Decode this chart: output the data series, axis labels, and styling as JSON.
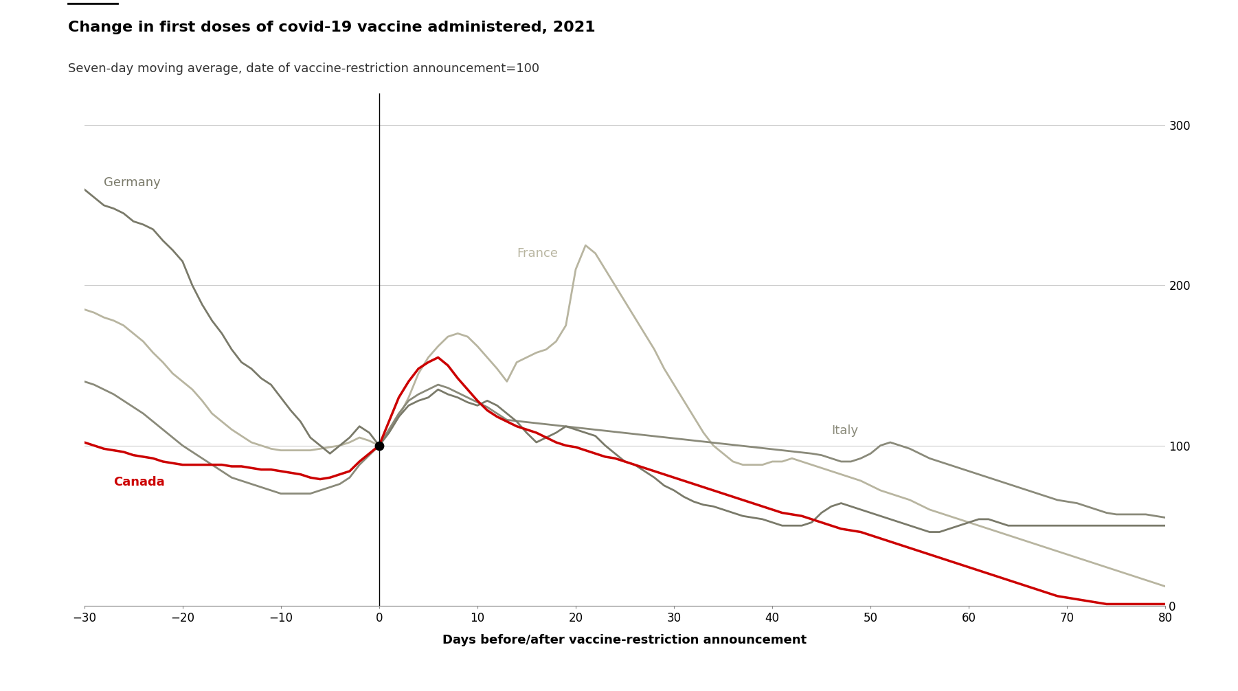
{
  "title": "Change in first doses of covid-19 vaccine administered, 2021",
  "subtitle": "Seven-day moving average, date of vaccine-restriction announcement=100",
  "xlabel": "Days before/after vaccine-restriction announcement",
  "xlim": [
    -30,
    80
  ],
  "ylim": [
    0,
    320
  ],
  "yticks": [
    0,
    100,
    200,
    300
  ],
  "xticks": [
    -30,
    -20,
    -10,
    0,
    10,
    20,
    30,
    40,
    50,
    60,
    70,
    80
  ],
  "bg_color": "#ffffff",
  "grid_color": "#cccccc",
  "canada_color": "#cc0000",
  "germany_color": "#7a7a6a",
  "france_color": "#b8b5a0",
  "italy_color": "#8a8a7a",
  "germany_x": [
    -30,
    -29,
    -28,
    -27,
    -26,
    -25,
    -24,
    -23,
    -22,
    -21,
    -20,
    -19,
    -18,
    -17,
    -16,
    -15,
    -14,
    -13,
    -12,
    -11,
    -10,
    -9,
    -8,
    -7,
    -6,
    -5,
    -4,
    -3,
    -2,
    -1,
    0,
    1,
    2,
    3,
    4,
    5,
    6,
    7,
    8,
    9,
    10,
    11,
    12,
    13,
    14,
    15,
    16,
    17,
    18,
    19,
    20,
    21,
    22,
    23,
    24,
    25,
    26,
    27,
    28,
    29,
    30,
    31,
    32,
    33,
    34,
    35,
    36,
    37,
    38,
    39,
    40,
    41,
    42,
    43,
    44,
    45,
    46,
    47,
    48,
    49,
    50,
    51,
    52,
    53,
    54,
    55,
    56,
    57,
    58,
    59,
    60,
    61,
    62,
    63,
    64,
    65,
    66,
    67,
    68,
    69,
    70,
    71,
    72,
    73,
    74,
    75,
    76,
    77,
    78,
    79,
    80
  ],
  "germany_y": [
    260,
    255,
    250,
    248,
    245,
    240,
    238,
    235,
    228,
    222,
    215,
    200,
    188,
    178,
    170,
    160,
    152,
    148,
    142,
    138,
    130,
    122,
    115,
    105,
    100,
    95,
    100,
    105,
    112,
    108,
    100,
    108,
    118,
    125,
    128,
    130,
    135,
    132,
    130,
    127,
    125,
    128,
    125,
    120,
    115,
    108,
    102,
    105,
    108,
    112,
    110,
    108,
    106,
    100,
    95,
    90,
    88,
    84,
    80,
    75,
    72,
    68,
    65,
    63,
    62,
    60,
    58,
    56,
    55,
    54,
    52,
    50,
    50,
    50,
    52,
    58,
    62,
    64,
    62,
    60,
    58,
    56,
    54,
    52,
    50,
    48,
    46,
    46,
    48,
    50,
    52,
    54,
    54,
    52,
    50,
    50,
    50,
    50,
    50,
    50,
    50,
    50,
    50,
    50,
    50,
    50,
    50,
    50,
    50,
    50,
    50
  ],
  "france_x": [
    -30,
    -29,
    -28,
    -27,
    -26,
    -25,
    -24,
    -23,
    -22,
    -21,
    -20,
    -19,
    -18,
    -17,
    -16,
    -15,
    -14,
    -13,
    -12,
    -11,
    -10,
    -9,
    -8,
    -7,
    -6,
    -5,
    -4,
    -3,
    -2,
    -1,
    0,
    1,
    2,
    3,
    4,
    5,
    6,
    7,
    8,
    9,
    10,
    11,
    12,
    13,
    14,
    15,
    16,
    17,
    18,
    19,
    20,
    21,
    22,
    23,
    24,
    25,
    26,
    27,
    28,
    29,
    30,
    31,
    32,
    33,
    34,
    35,
    36,
    37,
    38,
    39,
    40,
    41,
    42,
    43,
    44,
    45,
    46,
    47,
    48,
    49,
    50,
    51,
    52,
    53,
    54,
    55,
    56,
    57,
    58,
    59,
    60,
    61,
    62,
    63,
    64,
    65,
    66,
    67,
    68,
    69,
    70,
    71,
    72,
    73,
    74,
    75,
    76,
    77,
    78,
    79,
    80
  ],
  "france_y": [
    185,
    183,
    180,
    178,
    175,
    170,
    165,
    158,
    152,
    145,
    140,
    135,
    128,
    120,
    115,
    110,
    106,
    102,
    100,
    98,
    97,
    97,
    97,
    97,
    98,
    99,
    100,
    102,
    105,
    103,
    100,
    108,
    118,
    130,
    145,
    155,
    162,
    168,
    170,
    168,
    162,
    155,
    148,
    140,
    152,
    155,
    158,
    160,
    165,
    175,
    210,
    225,
    220,
    210,
    200,
    190,
    180,
    170,
    160,
    148,
    138,
    128,
    118,
    108,
    100,
    95,
    90,
    88,
    88,
    88,
    90,
    90,
    92,
    90,
    88,
    86,
    84,
    82,
    80,
    78,
    75,
    72,
    70,
    68,
    66,
    63,
    60,
    58,
    56,
    54,
    52,
    50,
    48,
    46,
    44,
    42,
    40,
    38,
    36,
    34,
    32,
    30,
    28,
    26,
    24,
    22,
    20,
    18,
    16,
    14,
    12
  ],
  "italy_x": [
    -30,
    -29,
    -28,
    -27,
    -26,
    -25,
    -24,
    -23,
    -22,
    -21,
    -20,
    -19,
    -18,
    -17,
    -16,
    -15,
    -14,
    -13,
    -12,
    -11,
    -10,
    -9,
    -8,
    -7,
    -6,
    -5,
    -4,
    -3,
    -2,
    -1,
    0,
    1,
    2,
    3,
    4,
    5,
    6,
    7,
    8,
    9,
    10,
    11,
    12,
    13,
    44,
    45,
    46,
    47,
    48,
    49,
    50,
    51,
    52,
    53,
    54,
    55,
    56,
    57,
    58,
    59,
    60,
    61,
    62,
    63,
    64,
    65,
    66,
    67,
    68,
    69,
    70,
    71,
    72,
    73,
    74,
    75,
    76,
    77,
    78,
    79,
    80
  ],
  "italy_y": [
    140,
    138,
    135,
    132,
    128,
    124,
    120,
    115,
    110,
    105,
    100,
    96,
    92,
    88,
    84,
    80,
    78,
    76,
    74,
    72,
    70,
    70,
    70,
    70,
    72,
    74,
    76,
    80,
    88,
    94,
    100,
    110,
    120,
    128,
    132,
    135,
    138,
    136,
    133,
    130,
    127,
    124,
    120,
    116,
    95,
    94,
    92,
    90,
    90,
    92,
    95,
    100,
    102,
    100,
    98,
    95,
    92,
    90,
    88,
    86,
    84,
    82,
    80,
    78,
    76,
    74,
    72,
    70,
    68,
    66,
    65,
    64,
    62,
    60,
    58,
    57,
    57,
    57,
    57,
    56,
    55
  ],
  "canada_x": [
    -30,
    -29,
    -28,
    -27,
    -26,
    -25,
    -24,
    -23,
    -22,
    -21,
    -20,
    -19,
    -18,
    -17,
    -16,
    -15,
    -14,
    -13,
    -12,
    -11,
    -10,
    -9,
    -8,
    -7,
    -6,
    -5,
    -4,
    -3,
    -2,
    -1,
    0,
    1,
    2,
    3,
    4,
    5,
    6,
    7,
    8,
    9,
    10,
    11,
    12,
    13,
    14,
    15,
    16,
    17,
    18,
    19,
    20,
    21,
    22,
    23,
    24,
    25,
    26,
    27,
    28,
    29,
    30,
    31,
    32,
    33,
    34,
    35,
    36,
    37,
    38,
    39,
    40,
    41,
    42,
    43,
    44,
    45,
    46,
    47,
    48,
    49,
    50,
    51,
    52,
    53,
    54,
    55,
    56,
    57,
    58,
    59,
    60,
    61,
    62,
    63,
    64,
    65,
    66,
    67,
    68,
    69,
    70,
    71,
    72,
    73,
    74,
    75,
    76,
    77,
    78,
    79,
    80
  ],
  "canada_y": [
    102,
    100,
    98,
    97,
    96,
    94,
    93,
    92,
    90,
    89,
    88,
    88,
    88,
    88,
    88,
    87,
    87,
    86,
    85,
    85,
    84,
    83,
    82,
    80,
    79,
    80,
    82,
    84,
    90,
    95,
    100,
    115,
    130,
    140,
    148,
    152,
    155,
    150,
    142,
    135,
    128,
    122,
    118,
    115,
    112,
    110,
    108,
    105,
    102,
    100,
    99,
    97,
    95,
    93,
    92,
    90,
    88,
    86,
    84,
    82,
    80,
    78,
    76,
    74,
    72,
    70,
    68,
    66,
    64,
    62,
    60,
    58,
    57,
    56,
    54,
    52,
    50,
    48,
    47,
    46,
    44,
    42,
    40,
    38,
    36,
    34,
    32,
    30,
    28,
    26,
    24,
    22,
    20,
    18,
    16,
    14,
    12,
    10,
    8,
    6,
    5,
    4,
    3,
    2,
    1,
    1,
    1,
    1,
    1,
    1,
    1
  ]
}
